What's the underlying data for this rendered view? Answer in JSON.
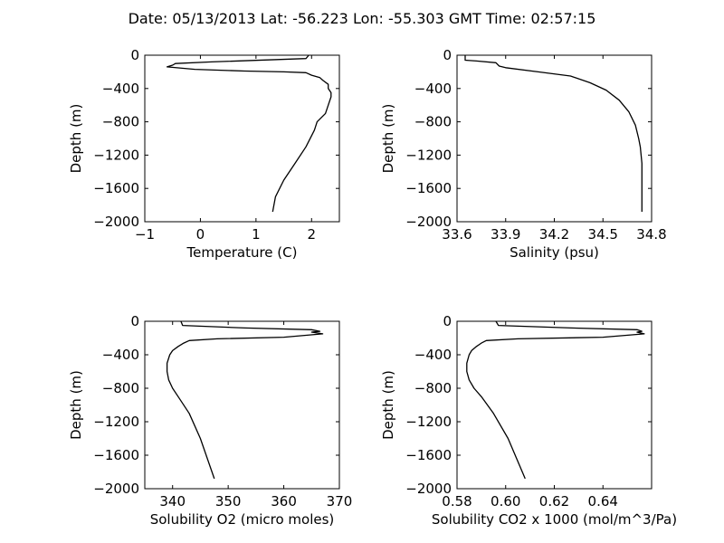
{
  "title": "Date: 05/13/2013  Lat:  -56.223 Lon:  -55.303  GMT Time: 02:57:15",
  "chart_data": [
    {
      "type": "line",
      "xlabel": "Temperature (C)",
      "ylabel": "Depth (m)",
      "xlim": [
        -1,
        2.5
      ],
      "ylim": [
        -2000,
        0
      ],
      "xticks": [
        -1,
        0,
        1,
        2
      ],
      "xticklabels": [
        "−1",
        "0",
        "1",
        "2"
      ],
      "yticks": [
        0,
        -400,
        -800,
        -1200,
        -1600,
        -2000
      ],
      "yticklabels": [
        "0",
        "−400",
        "−800",
        "−1200",
        "−1600",
        "−2000"
      ],
      "series": [
        {
          "x": [
            1.95,
            1.9,
            0.2,
            -0.45,
            -0.5,
            -0.6,
            -0.1,
            0.8,
            1.5,
            1.9,
            2.0,
            2.15,
            2.2,
            2.3,
            2.3,
            2.35,
            2.35,
            2.3,
            2.25,
            2.1,
            2.05,
            1.9,
            1.7,
            1.5,
            1.35,
            1.3
          ],
          "y": [
            0,
            -40,
            -80,
            -100,
            -120,
            -140,
            -170,
            -190,
            -200,
            -210,
            -240,
            -270,
            -300,
            -350,
            -400,
            -450,
            -500,
            -600,
            -700,
            -800,
            -900,
            -1100,
            -1300,
            -1500,
            -1700,
            -1880
          ]
        }
      ]
    },
    {
      "type": "line",
      "xlabel": "Salinity (psu)",
      "ylabel": "Depth (m)",
      "xlim": [
        33.6,
        34.8
      ],
      "ylim": [
        -2000,
        0
      ],
      "xticks": [
        33.6,
        33.9,
        34.2,
        34.5,
        34.8
      ],
      "xticklabels": [
        "33.6",
        "33.9",
        "34.2",
        "34.5",
        "34.8"
      ],
      "yticks": [
        0,
        -400,
        -800,
        -1200,
        -1600,
        -2000
      ],
      "yticklabels": [
        "0",
        "−400",
        "−800",
        "−1200",
        "−1600",
        "−2000"
      ],
      "series": [
        {
          "x": [
            33.65,
            33.65,
            33.72,
            33.84,
            33.86,
            33.9,
            34.1,
            34.3,
            34.42,
            34.52,
            34.6,
            34.66,
            34.7,
            34.72,
            34.73,
            34.74,
            34.74,
            34.74
          ],
          "y": [
            0,
            -60,
            -70,
            -90,
            -130,
            -150,
            -200,
            -250,
            -330,
            -420,
            -540,
            -680,
            -840,
            -1000,
            -1100,
            -1300,
            -1600,
            -1880
          ]
        }
      ]
    },
    {
      "type": "line",
      "xlabel": "Solubility O2 (micro moles)",
      "ylabel": "Depth (m)",
      "xlim": [
        335,
        370
      ],
      "ylim": [
        -2000,
        0
      ],
      "xticks": [
        340,
        350,
        360,
        370
      ],
      "xticklabels": [
        "340",
        "350",
        "360",
        "370"
      ],
      "yticks": [
        0,
        -400,
        -800,
        -1200,
        -1600,
        -2000
      ],
      "yticklabels": [
        "0",
        "−400",
        "−800",
        "−1200",
        "−1600",
        "−2000"
      ],
      "series": [
        {
          "x": [
            341.5,
            341.8,
            353,
            365,
            366.5,
            365,
            367,
            360,
            348,
            343,
            342,
            341,
            340,
            339.5,
            339,
            339,
            339.3,
            340,
            341,
            343,
            345,
            347.5
          ],
          "y": [
            0,
            -50,
            -80,
            -100,
            -120,
            -130,
            -150,
            -190,
            -210,
            -230,
            -260,
            -300,
            -350,
            -400,
            -500,
            -600,
            -700,
            -800,
            -900,
            -1100,
            -1400,
            -1880
          ]
        }
      ]
    },
    {
      "type": "line",
      "xlabel": "Solubility CO2 x 1000 (mol/m^3/Pa)",
      "ylabel": "Depth (m)",
      "xlim": [
        0.58,
        0.66
      ],
      "ylim": [
        -2000,
        0
      ],
      "xticks": [
        0.58,
        0.6,
        0.62,
        0.64
      ],
      "xticklabels": [
        "0.58",
        "0.60",
        "0.62",
        "0.64"
      ],
      "yticks": [
        0,
        -400,
        -800,
        -1200,
        -1600,
        -2000
      ],
      "yticklabels": [
        "0",
        "−400",
        "−800",
        "−1200",
        "−1600",
        "−2000"
      ],
      "series": [
        {
          "x": [
            0.596,
            0.597,
            0.627,
            0.654,
            0.656,
            0.654,
            0.657,
            0.64,
            0.605,
            0.592,
            0.59,
            0.588,
            0.586,
            0.585,
            0.584,
            0.584,
            0.585,
            0.587,
            0.59,
            0.595,
            0.601,
            0.608
          ],
          "y": [
            0,
            -50,
            -80,
            -100,
            -120,
            -130,
            -150,
            -190,
            -210,
            -230,
            -260,
            -300,
            -350,
            -400,
            -500,
            -600,
            -700,
            -800,
            -900,
            -1100,
            -1400,
            -1880
          ]
        }
      ]
    }
  ]
}
